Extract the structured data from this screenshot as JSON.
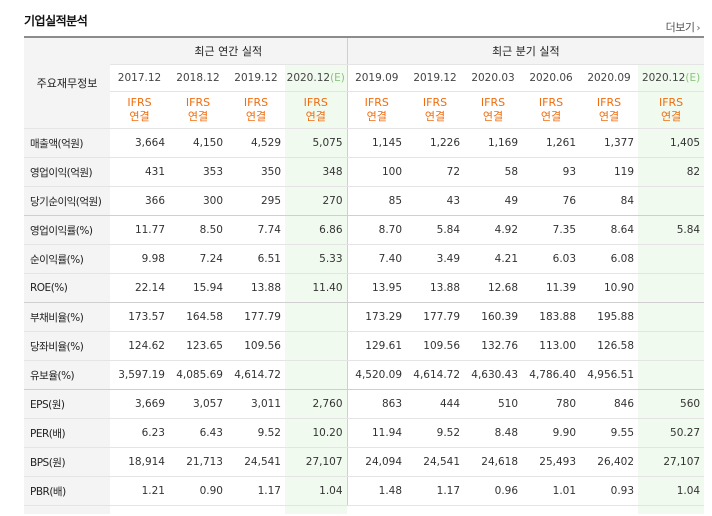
{
  "title": "기업실적분석",
  "more_label": "더보기",
  "header": {
    "row_label": "주요재무정보",
    "annual_group": "최근 연간 실적",
    "quarter_group": "최근 분기 실적",
    "annual_dates": [
      "2017.12",
      "2018.12",
      "2019.12",
      "2020.12"
    ],
    "annual_est_mark": "(E)",
    "quarter_dates": [
      "2019.09",
      "2019.12",
      "2020.03",
      "2020.06",
      "2020.09",
      "2020.12"
    ],
    "quarter_est_mark": "(E)",
    "ifrs_line1": "IFRS",
    "ifrs_line2": "연결"
  },
  "rows": [
    {
      "label": "매출액(억원)",
      "values": [
        "3,664",
        "4,150",
        "4,529",
        "5,075",
        "1,145",
        "1,226",
        "1,169",
        "1,261",
        "1,377",
        "1,405"
      ]
    },
    {
      "label": "영업이익(억원)",
      "values": [
        "431",
        "353",
        "350",
        "348",
        "100",
        "72",
        "58",
        "93",
        "119",
        "82"
      ]
    },
    {
      "label": "당기순이익(억원)",
      "values": [
        "366",
        "300",
        "295",
        "270",
        "85",
        "43",
        "49",
        "76",
        "84",
        ""
      ]
    },
    {
      "label": "영업이익률(%)",
      "values": [
        "11.77",
        "8.50",
        "7.74",
        "6.86",
        "8.70",
        "5.84",
        "4.92",
        "7.35",
        "8.64",
        "5.84"
      ]
    },
    {
      "label": "순이익률(%)",
      "values": [
        "9.98",
        "7.24",
        "6.51",
        "5.33",
        "7.40",
        "3.49",
        "4.21",
        "6.03",
        "6.08",
        ""
      ]
    },
    {
      "label": "ROE(%)",
      "values": [
        "22.14",
        "15.94",
        "13.88",
        "11.40",
        "13.95",
        "13.88",
        "12.68",
        "11.39",
        "10.90",
        ""
      ]
    },
    {
      "label": "부채비율(%)",
      "values": [
        "173.57",
        "164.58",
        "177.79",
        "",
        "173.29",
        "177.79",
        "160.39",
        "183.88",
        "195.88",
        ""
      ]
    },
    {
      "label": "당좌비율(%)",
      "values": [
        "124.62",
        "123.65",
        "109.56",
        "",
        "129.61",
        "109.56",
        "132.76",
        "113.00",
        "126.58",
        ""
      ]
    },
    {
      "label": "유보율(%)",
      "values": [
        "3,597.19",
        "4,085.69",
        "4,614.72",
        "",
        "4,520.09",
        "4,614.72",
        "4,630.43",
        "4,786.40",
        "4,956.51",
        ""
      ]
    },
    {
      "label": "EPS(원)",
      "values": [
        "3,669",
        "3,057",
        "3,011",
        "2,760",
        "863",
        "444",
        "510",
        "780",
        "846",
        "560"
      ]
    },
    {
      "label": "PER(배)",
      "values": [
        "6.23",
        "6.43",
        "9.52",
        "10.20",
        "11.94",
        "9.52",
        "8.48",
        "9.90",
        "9.55",
        "50.27"
      ]
    },
    {
      "label": "BPS(원)",
      "values": [
        "18,914",
        "21,713",
        "24,541",
        "27,107",
        "24,094",
        "24,541",
        "24,618",
        "25,493",
        "26,402",
        "27,107"
      ]
    },
    {
      "label": "PBR(배)",
      "values": [
        "1.21",
        "0.90",
        "1.17",
        "1.04",
        "1.48",
        "1.17",
        "0.96",
        "1.01",
        "0.93",
        "1.04"
      ]
    }
  ]
}
